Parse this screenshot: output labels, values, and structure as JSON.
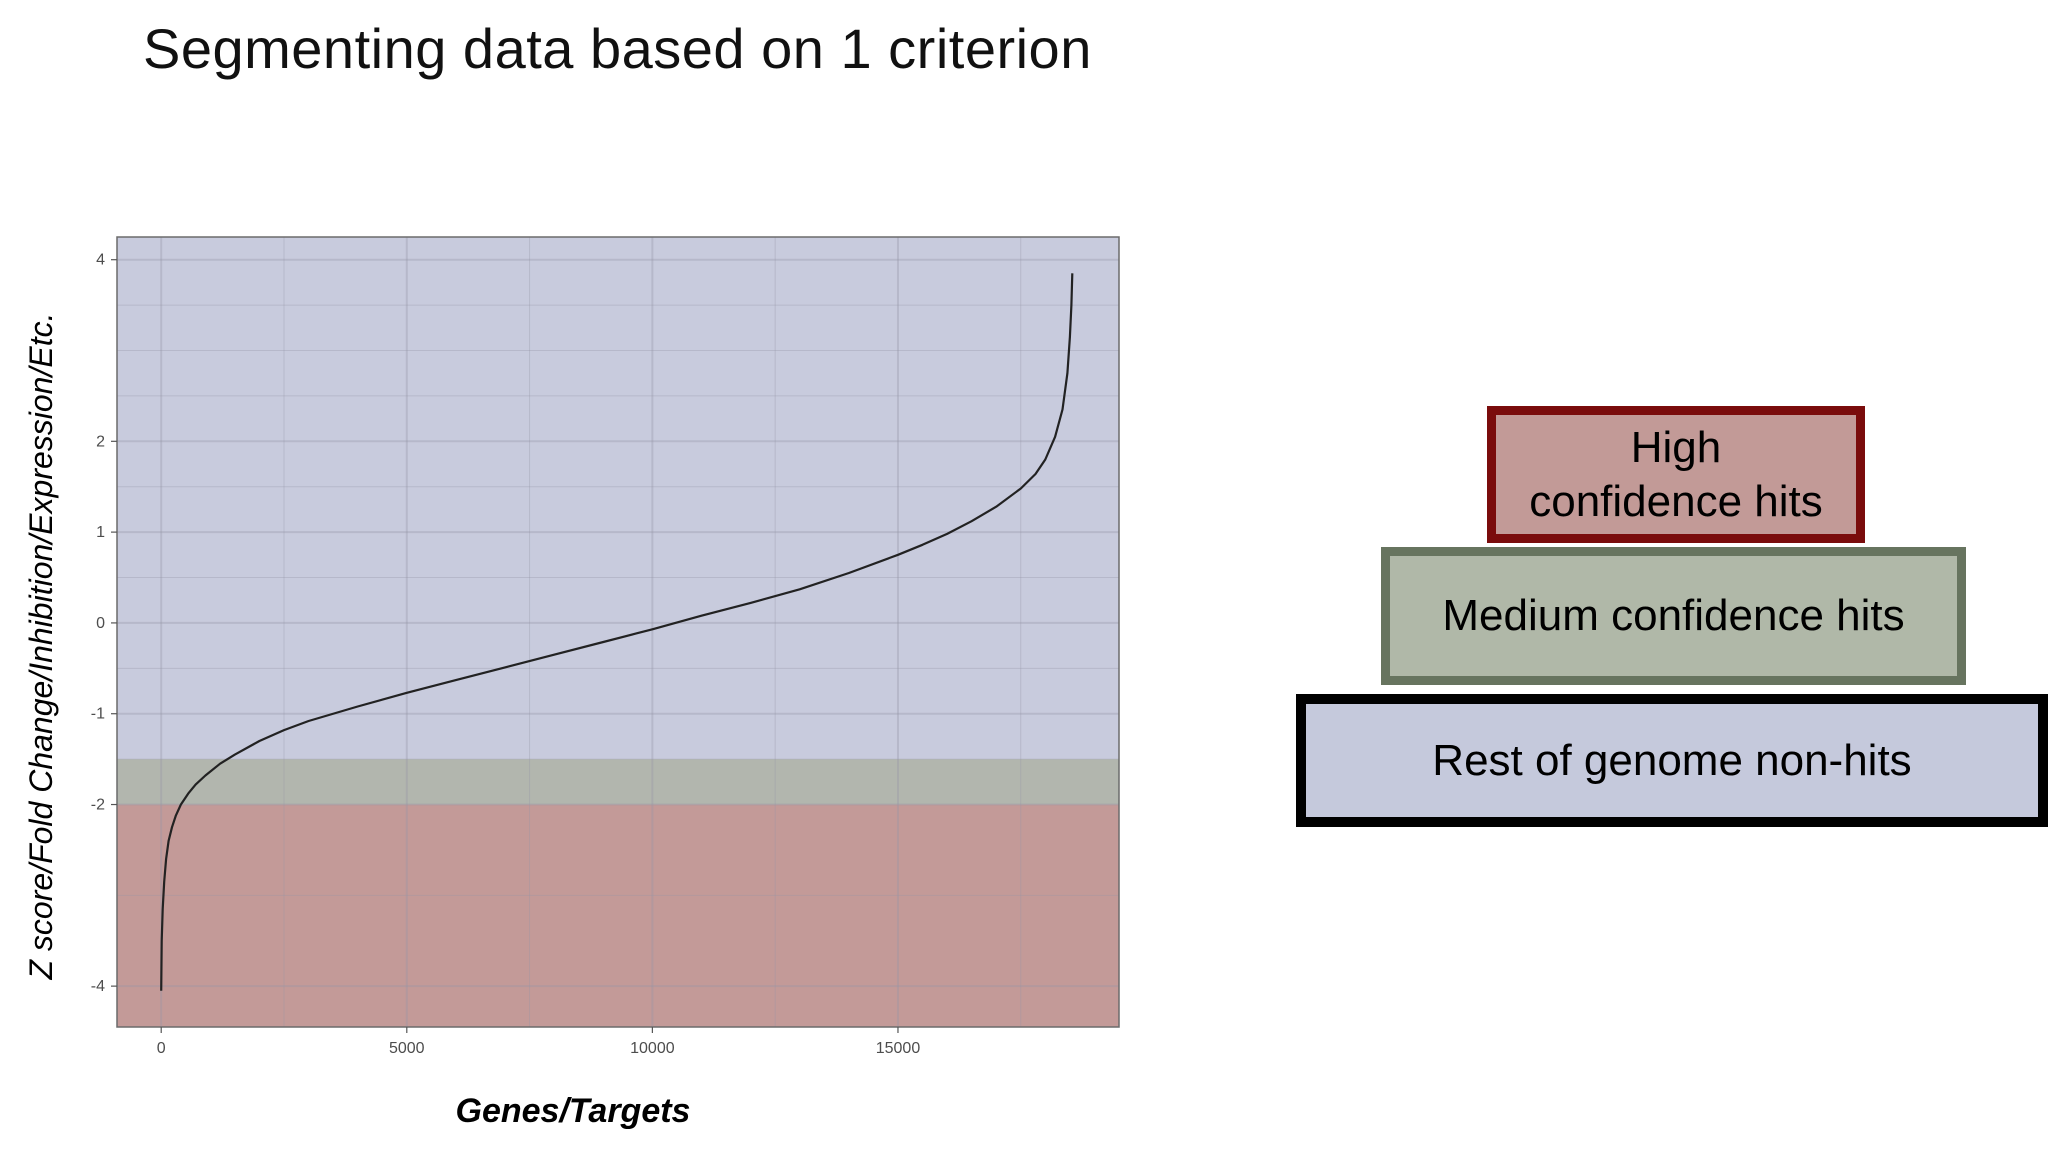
{
  "slide": {
    "title": "Segmenting data based on 1 criterion"
  },
  "chart_data": {
    "type": "line",
    "title": "",
    "xlabel": "Genes/Targets",
    "ylabel": "Z score/Fold  Change/Inhibition/Expression/Etc.",
    "xlim": [
      -900,
      19500
    ],
    "ylim": [
      -4.45,
      4.25
    ],
    "x_ticks": [
      0,
      5000,
      10000,
      15000
    ],
    "y_ticks": [
      -4,
      -2,
      -1,
      0,
      1,
      2,
      4
    ],
    "grid": true,
    "legend": "none",
    "regions": [
      {
        "name": "Rest of genome non-hits",
        "y_from": -1.5,
        "y_to": 4.25,
        "color": "#c8cbdd"
      },
      {
        "name": "Medium confidence hits",
        "y_from": -2.0,
        "y_to": -1.5,
        "color": "#b2b6ae"
      },
      {
        "name": "High confidence hits",
        "y_from": -4.45,
        "y_to": -2.0,
        "color": "#c39a98"
      }
    ],
    "line_color": "#222222",
    "series": [
      {
        "x": [
          0,
          10,
          30,
          60,
          100,
          150,
          220,
          300,
          400,
          550,
          700,
          900,
          1200,
          1500,
          2000,
          2500,
          3000,
          4000,
          5000,
          6000,
          7000,
          8000,
          9000,
          10000,
          11000,
          12000,
          13000,
          14000,
          15000,
          15500,
          16000,
          16500,
          17000,
          17500,
          17800,
          18000,
          18200,
          18350,
          18450,
          18500,
          18530,
          18550
        ],
        "y": [
          -4.05,
          -3.5,
          -3.15,
          -2.85,
          -2.6,
          -2.4,
          -2.25,
          -2.12,
          -2.0,
          -1.88,
          -1.78,
          -1.68,
          -1.55,
          -1.45,
          -1.3,
          -1.18,
          -1.08,
          -0.92,
          -0.77,
          -0.63,
          -0.49,
          -0.35,
          -0.21,
          -0.07,
          0.08,
          0.22,
          0.37,
          0.55,
          0.75,
          0.86,
          0.98,
          1.12,
          1.28,
          1.48,
          1.64,
          1.8,
          2.05,
          2.35,
          2.75,
          3.15,
          3.5,
          3.85
        ]
      }
    ]
  },
  "tiers": {
    "high": "High\nconfidence hits",
    "medium": "Medium confidence hits",
    "rest": "Rest of genome non-hits"
  },
  "colors": {
    "high_fill": "#c29a97",
    "high_border": "#7a0c0c",
    "medium_fill": "#b0b8a8",
    "medium_border": "#67745f",
    "rest_fill": "#c5c9dc",
    "rest_border": "#000000"
  }
}
